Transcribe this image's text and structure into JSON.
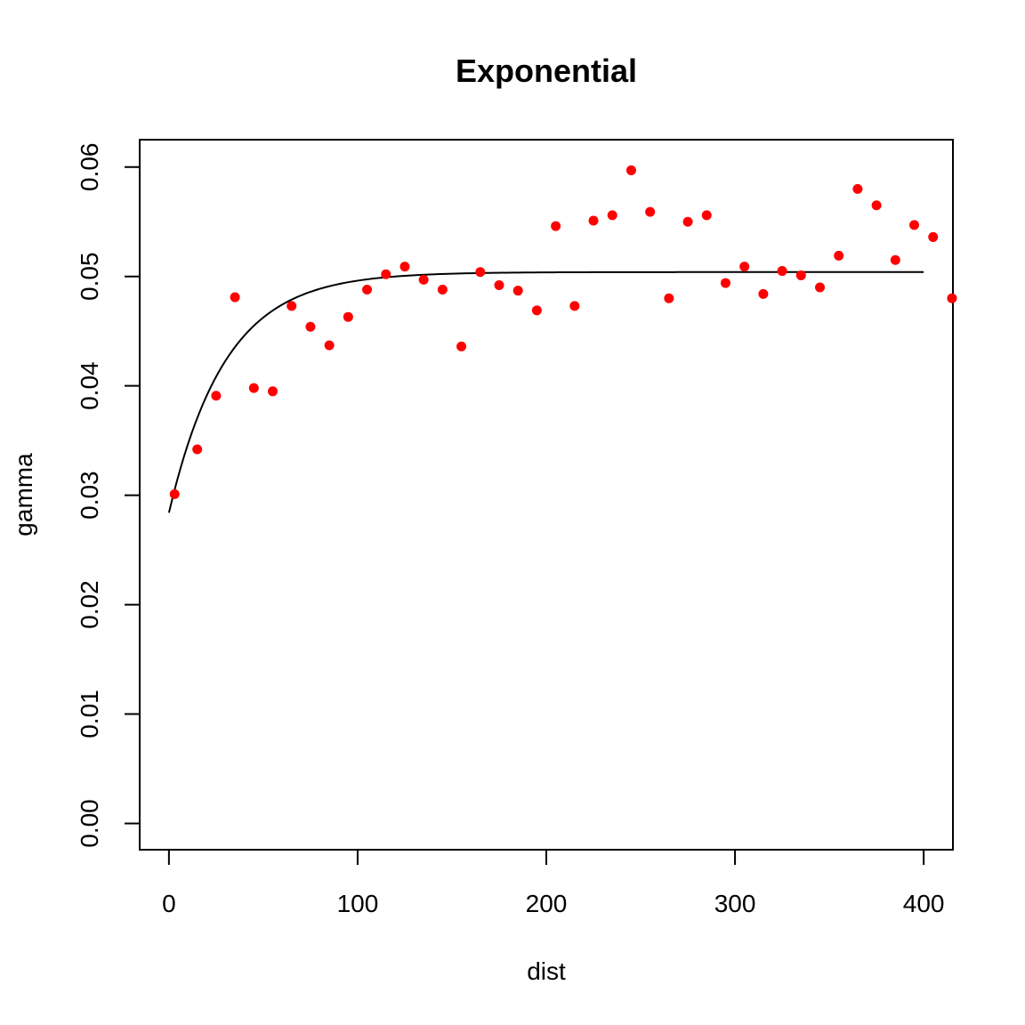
{
  "chart_data": {
    "type": "scatter",
    "title": "Exponential",
    "xlabel": "dist",
    "ylabel": "gamma",
    "xlim": [
      -15.5,
      415.5
    ],
    "ylim": [
      -0.0024,
      0.0625
    ],
    "x_ticks": [
      "0",
      "100",
      "200",
      "300",
      "400"
    ],
    "y_ticks": [
      "0.00",
      "0.01",
      "0.02",
      "0.03",
      "0.04",
      "0.05",
      "0.06"
    ],
    "grid": false,
    "point_color": "#ff0000",
    "line_color": "#000000",
    "points": {
      "x": [
        3,
        15,
        25,
        35,
        45,
        55,
        65,
        75,
        85,
        95,
        105,
        115,
        125,
        135,
        145,
        155,
        165,
        175,
        185,
        195,
        205,
        215,
        225,
        235,
        245,
        255,
        265,
        275,
        285,
        295,
        305,
        315,
        325,
        335,
        345,
        355,
        365,
        375,
        385,
        395,
        405,
        415
      ],
      "y": [
        0.0301,
        0.0342,
        0.0391,
        0.0481,
        0.0398,
        0.0395,
        0.0473,
        0.0454,
        0.0437,
        0.0463,
        0.0488,
        0.0502,
        0.0509,
        0.0497,
        0.0488,
        0.0436,
        0.0504,
        0.0492,
        0.0487,
        0.0469,
        0.0546,
        0.0473,
        0.0551,
        0.0556,
        0.0597,
        0.0559,
        0.048,
        0.055,
        0.0556,
        0.0494,
        0.0509,
        0.0484,
        0.0505,
        0.0501,
        0.049,
        0.0519,
        0.058,
        0.0565,
        0.0515,
        0.0547,
        0.0536,
        0.048
      ]
    },
    "fit": {
      "model": "exponential",
      "nugget": 0.0284,
      "partial_sill": 0.022,
      "range": 30,
      "x_range": [
        0,
        400
      ]
    }
  }
}
